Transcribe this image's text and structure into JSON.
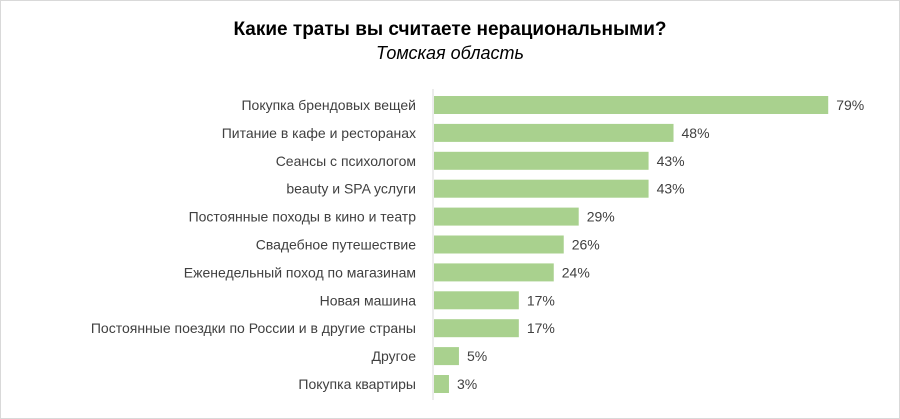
{
  "chart_data": {
    "type": "bar",
    "orientation": "horizontal",
    "title": "Какие траты вы считаете нерациональными?",
    "subtitle": "Томская область",
    "categories": [
      "Покупка брендовых вещей",
      "Питание в кафе и ресторанах",
      "Сеансы с психологом",
      "beauty и SPA услуги",
      "Постоянные походы в кино и театр",
      "Свадебное путешествие",
      "Еженедельный поход по магазинам",
      "Новая машина",
      "Постоянные поездки по России и в другие страны",
      "Другое",
      "Покупка квартиры"
    ],
    "values": [
      79,
      48,
      43,
      43,
      29,
      26,
      24,
      17,
      17,
      5,
      3
    ],
    "value_suffix": "%",
    "bar_color": "#a9d18e",
    "xlim": [
      0,
      100
    ],
    "grid": false
  }
}
